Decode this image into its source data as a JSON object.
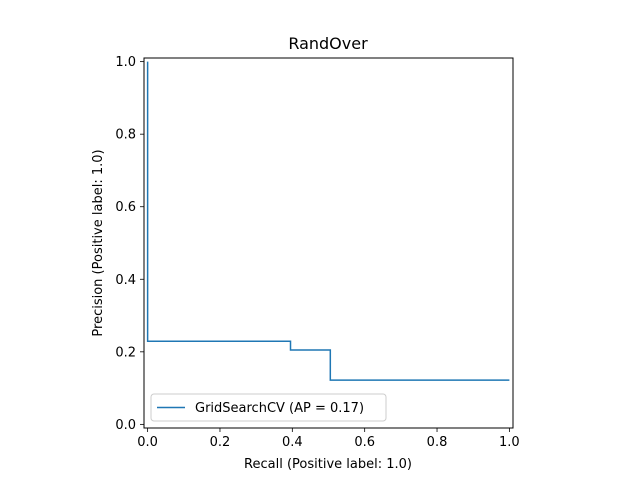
{
  "chart_data": {
    "type": "line",
    "title": "RandOver",
    "xlabel": "Recall (Positive label: 1.0)",
    "ylabel": "Precision (Positive label: 1.0)",
    "xlim": [
      -0.01,
      1.01
    ],
    "ylim": [
      -0.01,
      1.01
    ],
    "xticks": [
      "0.0",
      "0.2",
      "0.4",
      "0.6",
      "0.8",
      "1.0"
    ],
    "yticks": [
      "0.0",
      "0.2",
      "0.4",
      "0.6",
      "0.8",
      "1.0"
    ],
    "grid": false,
    "legend_position": "lower-left",
    "series": [
      {
        "name": "GridSearchCV (AP = 0.17)",
        "color": "#1f77b4",
        "drawstyle": "steps-post",
        "x": [
          0.0,
          0.0,
          0.395,
          0.395,
          0.505,
          0.505,
          1.0
        ],
        "y": [
          1.0,
          0.229,
          0.229,
          0.205,
          0.205,
          0.122,
          0.122
        ]
      }
    ]
  }
}
